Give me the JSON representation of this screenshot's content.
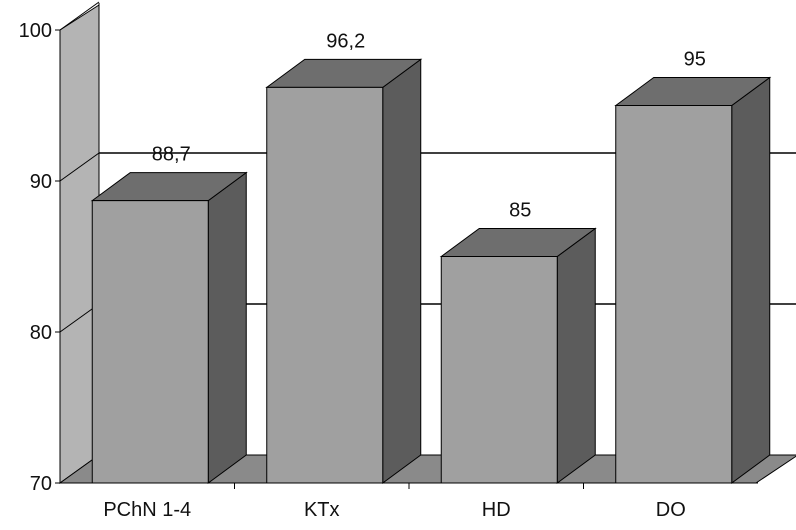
{
  "chart_data": {
    "type": "bar",
    "categories": [
      "PChN 1-4",
      "KTx",
      "HD",
      "DO"
    ],
    "values": [
      88.7,
      96.2,
      85,
      95
    ],
    "value_labels": [
      "88,7",
      "96,2",
      "85",
      "95"
    ],
    "title": "",
    "xlabel": "",
    "ylabel": "",
    "ylim": [
      70,
      100
    ],
    "yticks": [
      70,
      80,
      90,
      100
    ],
    "grid": true,
    "legend": "none",
    "style": "3d-column"
  },
  "colors": {
    "bar_front": "#a0a0a0",
    "bar_top": "#6e6e6e",
    "bar_side": "#5c5c5c",
    "wall": "#b4b4b4",
    "floor": "#8a8a8a",
    "outline": "#000000"
  }
}
